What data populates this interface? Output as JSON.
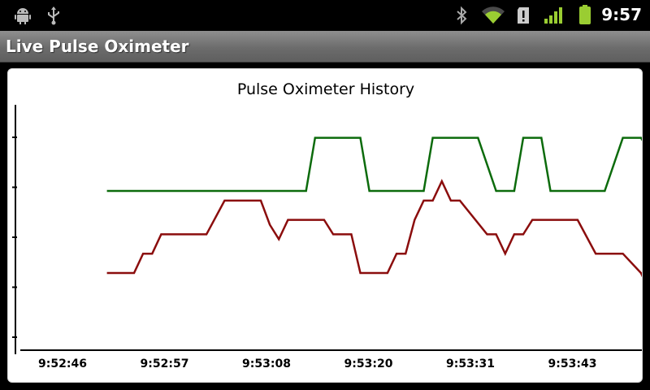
{
  "status_bar": {
    "time": "9:57",
    "left_icons": [
      "android-debug-icon",
      "usb-icon"
    ],
    "right_icons": [
      "bluetooth-icon",
      "wifi-icon",
      "sdcard-alert-icon",
      "signal-icon",
      "battery-icon"
    ]
  },
  "app": {
    "title": "Live Pulse Oximeter"
  },
  "colors": {
    "spo2": "#0c6b0c",
    "pulse": "#8b0d0d",
    "title_bar": "#6c6c6c"
  },
  "chart_data": {
    "type": "line",
    "title": "Pulse Oximeter History",
    "xlabel": "",
    "ylabel": "",
    "x_ticks": [
      "9:52:46",
      "9:52:57",
      "9:53:08",
      "9:53:20",
      "9:53:31",
      "9:53:43"
    ],
    "xlim": [
      "9:52:46",
      "9:53:50"
    ],
    "ylim": [
      0,
      5
    ],
    "y_ticks_labeled": false,
    "grid": false,
    "series": [
      {
        "color": "#0c6b0c",
        "points": [
          [
            "9:52:50",
            3.3
          ],
          [
            "9:53:12",
            3.3
          ],
          [
            "9:53:13",
            4.4
          ],
          [
            "9:53:18",
            4.4
          ],
          [
            "9:53:19",
            3.3
          ],
          [
            "9:53:25",
            3.3
          ],
          [
            "9:53:26",
            4.4
          ],
          [
            "9:53:31",
            4.4
          ],
          [
            "9:53:33",
            3.3
          ],
          [
            "9:53:35",
            3.3
          ],
          [
            "9:53:36",
            4.4
          ],
          [
            "9:53:38",
            4.4
          ],
          [
            "9:53:39",
            3.3
          ],
          [
            "9:53:45",
            3.3
          ],
          [
            "9:53:47",
            4.4
          ],
          [
            "9:53:49",
            4.4
          ],
          [
            "9:53:50",
            4.1
          ]
        ]
      },
      {
        "color": "#8b0d0d",
        "points": [
          [
            "9:52:50",
            1.6
          ],
          [
            "9:52:53",
            1.6
          ],
          [
            "9:52:54",
            2.0
          ],
          [
            "9:52:55",
            2.0
          ],
          [
            "9:52:56",
            2.4
          ],
          [
            "9:53:01",
            2.4
          ],
          [
            "9:53:03",
            3.1
          ],
          [
            "9:53:07",
            3.1
          ],
          [
            "9:53:08",
            2.6
          ],
          [
            "9:53:09",
            2.3
          ],
          [
            "9:53:10",
            2.7
          ],
          [
            "9:53:14",
            2.7
          ],
          [
            "9:53:15",
            2.4
          ],
          [
            "9:53:17",
            2.4
          ],
          [
            "9:53:18",
            1.6
          ],
          [
            "9:53:21",
            1.6
          ],
          [
            "9:53:22",
            2.0
          ],
          [
            "9:53:23",
            2.0
          ],
          [
            "9:53:24",
            2.7
          ],
          [
            "9:53:25",
            3.1
          ],
          [
            "9:53:26",
            3.1
          ],
          [
            "9:53:27",
            3.5
          ],
          [
            "9:53:28",
            3.1
          ],
          [
            "9:53:29",
            3.1
          ],
          [
            "9:53:32",
            2.4
          ],
          [
            "9:53:33",
            2.4
          ],
          [
            "9:53:34",
            2.0
          ],
          [
            "9:53:35",
            2.4
          ],
          [
            "9:53:36",
            2.4
          ],
          [
            "9:53:37",
            2.7
          ],
          [
            "9:53:42",
            2.7
          ],
          [
            "9:53:44",
            2.0
          ],
          [
            "9:53:47",
            2.0
          ],
          [
            "9:53:49",
            1.6
          ],
          [
            "9:53:50",
            1.2
          ]
        ]
      }
    ]
  }
}
